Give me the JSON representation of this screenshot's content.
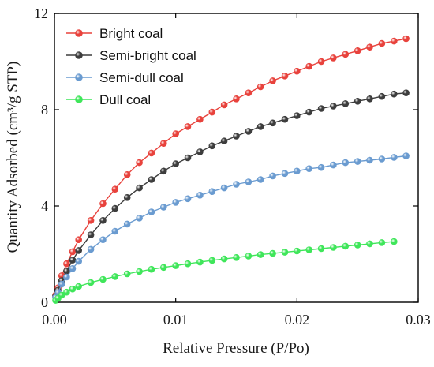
{
  "chart_data": {
    "type": "line",
    "xlabel": "Relative Pressure (P/Po)",
    "ylabel": "Quantity Adsorbed (cm³/g STP)",
    "xlim": [
      0,
      0.03
    ],
    "ylim": [
      0,
      12
    ],
    "x_ticks": [
      "0.00",
      "0.01",
      "0.02",
      "0.03"
    ],
    "y_ticks": [
      "0",
      "4",
      "8",
      "12"
    ],
    "x_tick_values": [
      0,
      0.01,
      0.02,
      0.03
    ],
    "y_tick_values": [
      0,
      4,
      8,
      12
    ],
    "grid": false,
    "legend_position": "top-left",
    "series": [
      {
        "name": "Bright coal",
        "color": "#e8423c",
        "x": [
          0.0001,
          0.0003,
          0.0006,
          0.001,
          0.0015,
          0.002,
          0.003,
          0.004,
          0.005,
          0.006,
          0.007,
          0.008,
          0.009,
          0.01,
          0.011,
          0.012,
          0.013,
          0.014,
          0.015,
          0.016,
          0.017,
          0.018,
          0.019,
          0.02,
          0.021,
          0.022,
          0.023,
          0.024,
          0.025,
          0.026,
          0.027,
          0.028,
          0.029
        ],
        "values": [
          0.3,
          0.6,
          1.1,
          1.6,
          2.1,
          2.6,
          3.4,
          4.1,
          4.7,
          5.3,
          5.8,
          6.2,
          6.6,
          7.0,
          7.3,
          7.6,
          7.9,
          8.2,
          8.45,
          8.7,
          8.95,
          9.2,
          9.4,
          9.6,
          9.8,
          10.0,
          10.15,
          10.3,
          10.45,
          10.6,
          10.75,
          10.85,
          10.95
        ]
      },
      {
        "name": "Semi-bright coal",
        "color": "#3d3d3d",
        "x": [
          0.0001,
          0.0003,
          0.0006,
          0.001,
          0.0015,
          0.002,
          0.003,
          0.004,
          0.005,
          0.006,
          0.007,
          0.008,
          0.009,
          0.01,
          0.011,
          0.012,
          0.013,
          0.014,
          0.015,
          0.016,
          0.017,
          0.018,
          0.019,
          0.02,
          0.021,
          0.022,
          0.023,
          0.024,
          0.025,
          0.026,
          0.027,
          0.028,
          0.029
        ],
        "values": [
          0.25,
          0.5,
          0.9,
          1.3,
          1.75,
          2.15,
          2.8,
          3.4,
          3.9,
          4.35,
          4.75,
          5.1,
          5.45,
          5.75,
          6.0,
          6.25,
          6.5,
          6.7,
          6.9,
          7.1,
          7.3,
          7.45,
          7.6,
          7.75,
          7.9,
          8.05,
          8.15,
          8.25,
          8.35,
          8.45,
          8.55,
          8.65,
          8.7
        ]
      },
      {
        "name": "Semi-dull coal",
        "color": "#6a9bd0",
        "x": [
          0.0001,
          0.0003,
          0.0006,
          0.001,
          0.0015,
          0.002,
          0.003,
          0.004,
          0.005,
          0.006,
          0.007,
          0.008,
          0.009,
          0.01,
          0.011,
          0.012,
          0.013,
          0.014,
          0.015,
          0.016,
          0.017,
          0.018,
          0.019,
          0.02,
          0.021,
          0.022,
          0.023,
          0.024,
          0.025,
          0.026,
          0.027,
          0.028,
          0.029
        ],
        "values": [
          0.2,
          0.4,
          0.75,
          1.05,
          1.4,
          1.7,
          2.2,
          2.6,
          2.95,
          3.25,
          3.5,
          3.75,
          3.95,
          4.15,
          4.3,
          4.45,
          4.6,
          4.75,
          4.9,
          5.0,
          5.1,
          5.25,
          5.35,
          5.45,
          5.55,
          5.6,
          5.7,
          5.8,
          5.85,
          5.9,
          5.95,
          6.02,
          6.08
        ]
      },
      {
        "name": "Dull coal",
        "color": "#3fe65a",
        "x": [
          0.0001,
          0.0003,
          0.0006,
          0.001,
          0.0015,
          0.002,
          0.003,
          0.004,
          0.005,
          0.006,
          0.007,
          0.008,
          0.009,
          0.01,
          0.011,
          0.012,
          0.013,
          0.014,
          0.015,
          0.016,
          0.017,
          0.018,
          0.019,
          0.02,
          0.021,
          0.022,
          0.023,
          0.024,
          0.025,
          0.026,
          0.027,
          0.028
        ],
        "values": [
          0.08,
          0.17,
          0.3,
          0.42,
          0.55,
          0.66,
          0.82,
          0.95,
          1.07,
          1.18,
          1.28,
          1.37,
          1.45,
          1.52,
          1.6,
          1.67,
          1.74,
          1.8,
          1.86,
          1.92,
          1.98,
          2.03,
          2.08,
          2.13,
          2.18,
          2.23,
          2.28,
          2.33,
          2.38,
          2.43,
          2.48,
          2.52
        ]
      }
    ]
  }
}
